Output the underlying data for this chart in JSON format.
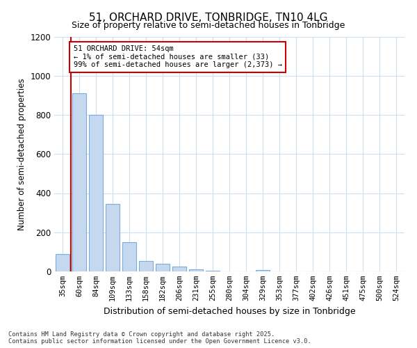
{
  "title1": "51, ORCHARD DRIVE, TONBRIDGE, TN10 4LG",
  "title2": "Size of property relative to semi-detached houses in Tonbridge",
  "xlabel": "Distribution of semi-detached houses by size in Tonbridge",
  "ylabel": "Number of semi-detached properties",
  "categories": [
    "35sqm",
    "60sqm",
    "84sqm",
    "109sqm",
    "133sqm",
    "158sqm",
    "182sqm",
    "206sqm",
    "231sqm",
    "255sqm",
    "280sqm",
    "304sqm",
    "329sqm",
    "353sqm",
    "377sqm",
    "402sqm",
    "426sqm",
    "451sqm",
    "475sqm",
    "500sqm",
    "524sqm"
  ],
  "values": [
    90,
    910,
    800,
    345,
    148,
    55,
    38,
    25,
    10,
    5,
    0,
    0,
    7,
    0,
    0,
    0,
    0,
    0,
    0,
    0,
    0
  ],
  "bar_color": "#c5d8f0",
  "bar_edgecolor": "#7aacda",
  "highlight_line_color": "#cc0000",
  "annotation_text": "51 ORCHARD DRIVE: 54sqm\n← 1% of semi-detached houses are smaller (33)\n99% of semi-detached houses are larger (2,373) →",
  "annotation_box_facecolor": "#ffffff",
  "annotation_box_edgecolor": "#cc0000",
  "ylim": [
    0,
    1200
  ],
  "yticks": [
    0,
    200,
    400,
    600,
    800,
    1000,
    1200
  ],
  "footer1": "Contains HM Land Registry data © Crown copyright and database right 2025.",
  "footer2": "Contains public sector information licensed under the Open Government Licence v3.0.",
  "bg_color": "#ffffff",
  "plot_bg_color": "#ffffff",
  "grid_color": "#d0dff0",
  "title1_fontsize": 11,
  "title2_fontsize": 9
}
